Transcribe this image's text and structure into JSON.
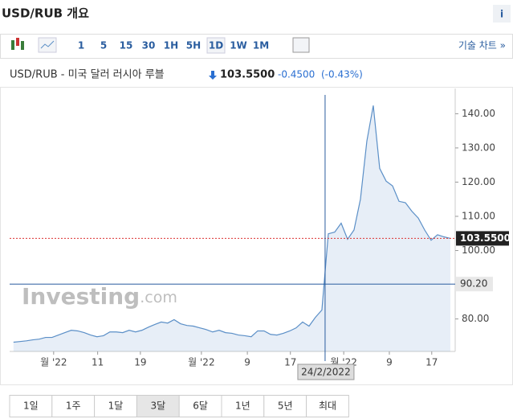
{
  "header": {
    "title": "USD/RUB 개요",
    "info": "i"
  },
  "toolbar": {
    "intervals": [
      "1",
      "5",
      "15",
      "30",
      "1H",
      "5H",
      "1D",
      "1W",
      "1M"
    ],
    "selected": 6,
    "link": "기술 차트 »"
  },
  "quote": {
    "name": "USD/RUB - 미국 달러 러시아 루블",
    "price": "103.5500",
    "change": "-0.4500",
    "change_pct": "(-0.43%)"
  },
  "chart_data": {
    "type": "line",
    "x": [
      0,
      1,
      2,
      3,
      4,
      5,
      6,
      7,
      8,
      9,
      10,
      11,
      12,
      13,
      14,
      15,
      16,
      17,
      18,
      19,
      20,
      21,
      22,
      23,
      24,
      25,
      26,
      27,
      28,
      29,
      30,
      31,
      32,
      33,
      34,
      35,
      36,
      37,
      38,
      39,
      40,
      41,
      42,
      43,
      44,
      45,
      46,
      47,
      48,
      49,
      50,
      51,
      52,
      53,
      54,
      55,
      56,
      57,
      58,
      59,
      60,
      61,
      62,
      63,
      64,
      65,
      66,
      67,
      68
    ],
    "series": [
      {
        "name": "USD/RUB",
        "color": "#5b8fc7",
        "values": [
          73.2,
          73.4,
          73.6,
          73.9,
          74.1,
          74.6,
          74.6,
          75.3,
          76.0,
          76.7,
          76.5,
          76.0,
          75.3,
          74.8,
          75.1,
          76.2,
          76.2,
          76.0,
          76.7,
          76.2,
          76.7,
          77.6,
          78.4,
          79.1,
          78.8,
          79.8,
          78.6,
          78.1,
          77.9,
          77.4,
          76.9,
          76.2,
          76.7,
          76.0,
          75.8,
          75.3,
          75.1,
          74.8,
          76.5,
          76.5,
          75.5,
          75.3,
          75.8,
          76.5,
          77.4,
          79.1,
          77.9,
          80.5,
          82.6,
          104.9,
          105.4,
          108.0,
          103.3,
          106.0,
          115.0,
          132.0,
          142.4,
          124.0,
          120.3,
          118.9,
          114.4,
          114.0,
          111.5,
          109.5,
          106.0,
          103.0,
          104.6,
          104.0,
          103.55
        ]
      }
    ],
    "xlim": [
      -0.6,
      68.75
    ],
    "ylim": [
      70.5,
      145.5
    ],
    "xticks": [
      {
        "value": 6.25,
        "label": "월 '22"
      },
      {
        "value": 13.1,
        "label": "11"
      },
      {
        "value": 19.75,
        "label": "19"
      },
      {
        "value": 29.25,
        "label": "월 '22"
      },
      {
        "value": 36.4,
        "label": "9"
      },
      {
        "value": 43.1,
        "label": "17"
      },
      {
        "value": 51.4,
        "label": "월 '22"
      },
      {
        "value": 58.5,
        "label": "9"
      },
      {
        "value": 65.1,
        "label": "17"
      }
    ],
    "yticks": [
      {
        "value": 80,
        "label": "80.00"
      },
      {
        "value": 100,
        "label": "100.00"
      },
      {
        "value": 110,
        "label": "110.00"
      },
      {
        "value": 120,
        "label": "120.00"
      },
      {
        "value": 130,
        "label": "130.00"
      },
      {
        "value": 140,
        "label": "140.00"
      }
    ],
    "last_value": {
      "value": 103.55,
      "label": "103.5500"
    },
    "crosshair": {
      "x": 48.5,
      "x_label": "24/2/2022",
      "y": 90.2,
      "y_label": "90.20"
    },
    "watermark": {
      "brand": "Investing",
      "suffix": ".com"
    }
  },
  "ranges": {
    "buttons": [
      "1일",
      "1주",
      "1달",
      "3달",
      "6달",
      "1년",
      "5년",
      "최대"
    ],
    "selected": 3
  }
}
